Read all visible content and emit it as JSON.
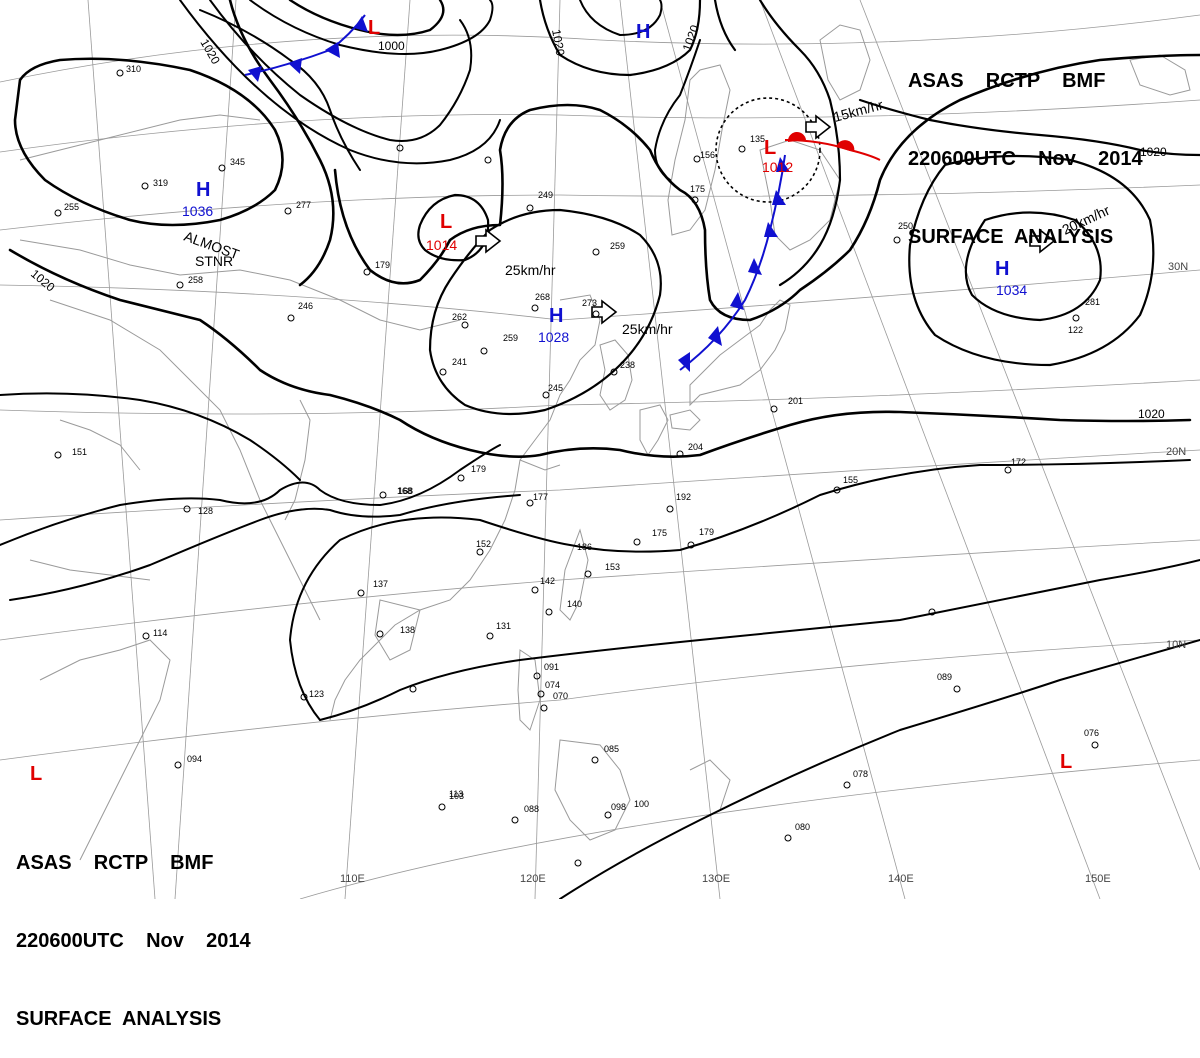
{
  "header": {
    "line1": "ASAS    RCTP    BMF",
    "line2": "220600UTC    Nov    2014",
    "line3": "SURFACE  ANALYSIS"
  },
  "colors": {
    "high": "#1010d0",
    "low": "#e00000",
    "isobar": "#000000",
    "grid": "#888888"
  },
  "lon_labels": [
    "110E",
    "120E",
    "13OE",
    "140E",
    "150E"
  ],
  "lat_labels": [
    "30N",
    "20N",
    "10N"
  ],
  "isobar_labels": [
    "1020",
    "1020",
    "1000",
    "1020",
    "1020",
    "1020",
    "1020"
  ],
  "pressure_systems": [
    {
      "type": "H",
      "value": "1036"
    },
    {
      "type": "L",
      "value": "1014"
    },
    {
      "type": "H",
      "value": "1028"
    },
    {
      "type": "L",
      "value": "1012"
    },
    {
      "type": "H",
      "value": "1034"
    },
    {
      "type": "L",
      "value": ""
    },
    {
      "type": "H",
      "value": ""
    },
    {
      "type": "L",
      "value": ""
    },
    {
      "type": "L",
      "value": ""
    }
  ],
  "motion_labels": [
    "25km/hr",
    "25km/hr",
    "15km/hr",
    "20km/hr"
  ],
  "annotations": [
    "ALMOST",
    "STNR"
  ],
  "stations": [
    "310",
    "319",
    "345",
    "277",
    "255",
    "258",
    "246",
    "179",
    "249",
    "259",
    "268",
    "273",
    "241",
    "262",
    "259",
    "245",
    "238",
    "175",
    "135",
    "156",
    "250",
    "281",
    "201",
    "204",
    "192",
    "179",
    "175",
    "168",
    "153",
    "152",
    "177",
    "179",
    "142",
    "140",
    "131",
    "138",
    "137",
    "128",
    "114",
    "151",
    "091",
    "074",
    "070",
    "085",
    "100",
    "078",
    "080",
    "089",
    "076",
    "103",
    "088",
    "094",
    "098",
    "172",
    "155",
    "186",
    "168",
    "122",
    "113",
    "123"
  ]
}
